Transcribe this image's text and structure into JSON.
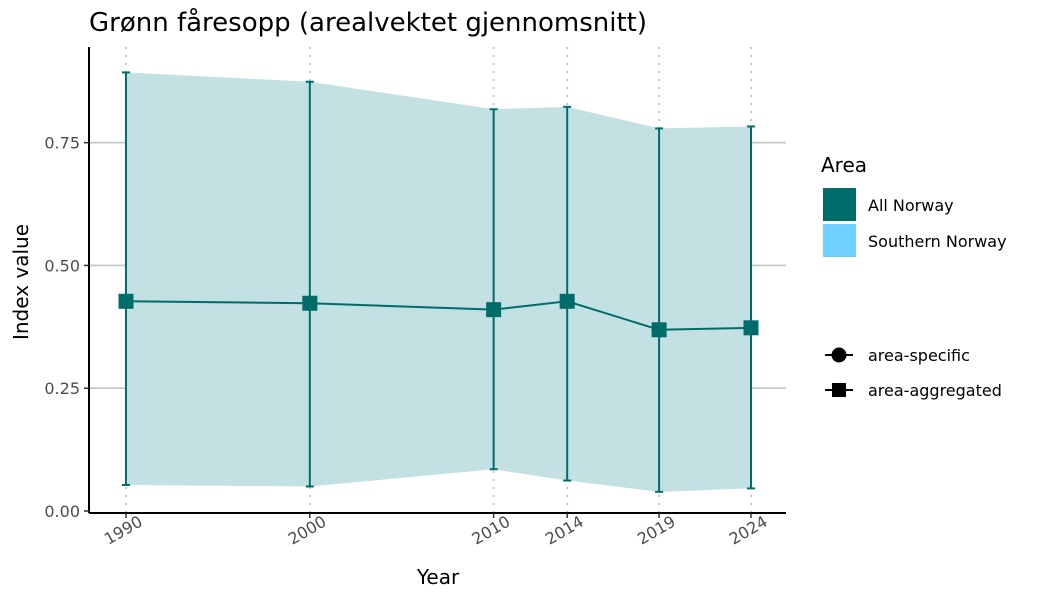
{
  "chart_data": {
    "type": "line",
    "title": "Grønn fåresopp (arealvektet gjennomsnitt)",
    "xlabel": "Year",
    "ylabel": "Index value",
    "x": [
      1990,
      2000,
      2010,
      2014,
      2019,
      2024
    ],
    "x_tick_labels": [
      "1990",
      "2000",
      "2010",
      "2014",
      "2019",
      "2024"
    ],
    "ylim": [
      0,
      0.9
    ],
    "y_ticks": [
      0,
      0.25,
      0.5,
      0.75
    ],
    "y_tick_labels": [
      "0.00",
      "0.25",
      "0.50",
      "0.75"
    ],
    "series": [
      {
        "name": "All Norway",
        "marker": "area-aggregated",
        "values": [
          0.427,
          0.423,
          0.41,
          0.427,
          0.369,
          0.373
        ],
        "lower": [
          0.053,
          0.05,
          0.085,
          0.062,
          0.039,
          0.046
        ],
        "upper": [
          0.893,
          0.874,
          0.818,
          0.823,
          0.779,
          0.783
        ]
      }
    ],
    "legend": {
      "title": "Area",
      "placement": "right",
      "fill_entries": [
        {
          "label": "All Norway",
          "color": "#006d6a"
        },
        {
          "label": "Southern Norway",
          "color": "#6fcfff"
        }
      ],
      "shape_entries": [
        {
          "label": "area-specific",
          "shape": "circle"
        },
        {
          "label": "area-aggregated",
          "shape": "square"
        }
      ]
    },
    "grid": {
      "horizontal": true,
      "vertical_dotted": true
    },
    "colors": {
      "line": "#006d6a",
      "band": "#c3e0e3",
      "grid": "#c4c4c4",
      "axis": "#000000"
    }
  }
}
